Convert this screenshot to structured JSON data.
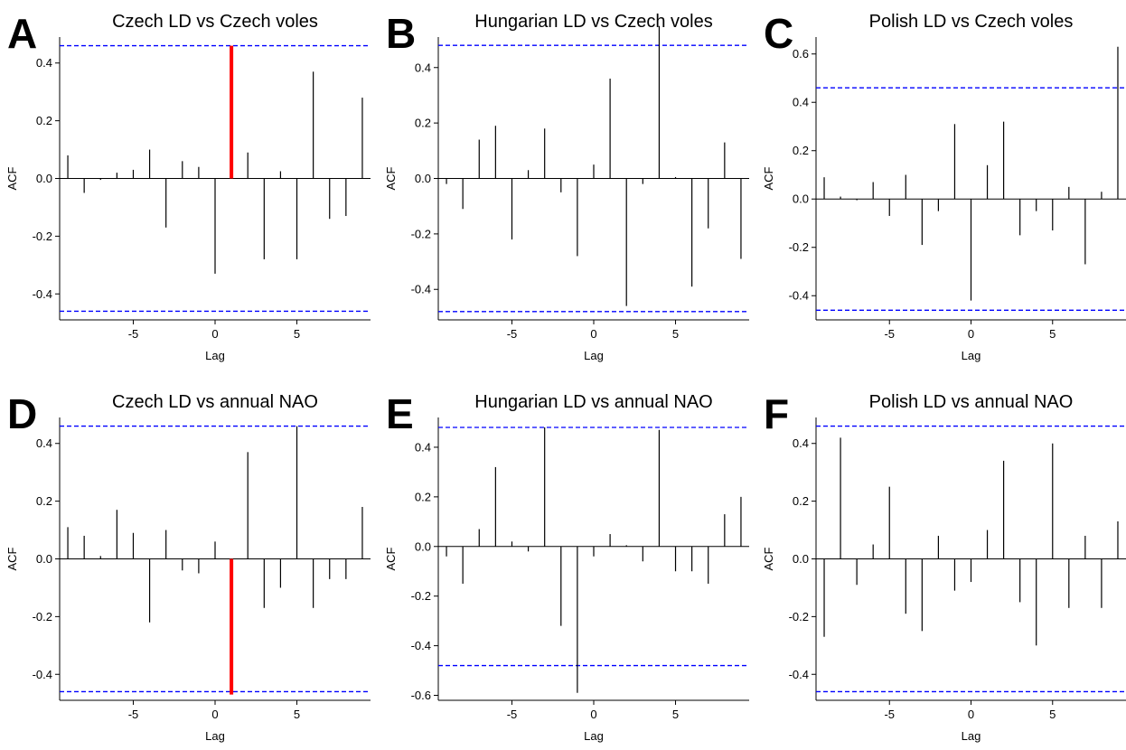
{
  "chart_data": [
    {
      "type": "bar",
      "letter": "A",
      "title": "Czech LD vs Czech voles",
      "xlabel": "Lag",
      "ylabel": "ACF",
      "xlim": [
        -9.5,
        9.5
      ],
      "ylim": [
        -0.49,
        0.49
      ],
      "xticks": [
        -5,
        0,
        5
      ],
      "yticks": [
        -0.4,
        -0.2,
        0.0,
        0.2,
        0.4
      ],
      "ytick_labels": [
        "-0.4",
        "-0.2",
        "0.0",
        "0.2",
        "0.4"
      ],
      "xtick_labels": [
        "-5",
        "0",
        "5"
      ],
      "conf_limit": 0.46,
      "conf_color": "#0000ff",
      "highlight_color": "#ff0000",
      "highlight_lag": 1,
      "lags": [
        -9,
        -8,
        -7,
        -6,
        -5,
        -4,
        -3,
        -2,
        -1,
        0,
        1,
        2,
        3,
        4,
        5,
        6,
        7,
        8,
        9
      ],
      "values": [
        0.08,
        -0.05,
        -0.005,
        0.02,
        0.03,
        0.1,
        -0.17,
        0.06,
        0.04,
        -0.33,
        0.46,
        0.09,
        -0.28,
        0.025,
        -0.28,
        0.37,
        -0.14,
        -0.13,
        0.28
      ]
    },
    {
      "type": "bar",
      "letter": "B",
      "title": "Hungarian LD vs Czech voles",
      "xlabel": "Lag",
      "ylabel": "ACF",
      "xlim": [
        -9.5,
        9.5
      ],
      "ylim": [
        -0.51,
        0.51
      ],
      "xticks": [
        -5,
        0,
        5
      ],
      "yticks": [
        -0.4,
        -0.2,
        0.0,
        0.2,
        0.4
      ],
      "ytick_labels": [
        "-0.4",
        "-0.2",
        "0.0",
        "0.2",
        "0.4"
      ],
      "xtick_labels": [
        "-5",
        "0",
        "5"
      ],
      "conf_limit": 0.48,
      "conf_color": "#0000ff",
      "highlight_color": "#ff0000",
      "highlight_lag": null,
      "lags": [
        -9,
        -8,
        -7,
        -6,
        -5,
        -4,
        -3,
        -2,
        -1,
        0,
        1,
        2,
        3,
        4,
        5,
        6,
        7,
        8,
        9
      ],
      "values": [
        -0.02,
        -0.11,
        0.14,
        0.19,
        -0.22,
        0.03,
        0.18,
        -0.05,
        -0.28,
        0.05,
        0.36,
        -0.46,
        -0.02,
        0.55,
        0.005,
        -0.39,
        -0.18,
        0.13,
        -0.29
      ]
    },
    {
      "type": "bar",
      "letter": "C",
      "title": "Polish LD vs Czech voles",
      "xlabel": "Lag",
      "ylabel": "ACF",
      "xlim": [
        -9.5,
        9.5
      ],
      "ylim": [
        -0.5,
        0.67
      ],
      "xticks": [
        -5,
        0,
        5
      ],
      "yticks": [
        -0.4,
        -0.2,
        0.0,
        0.2,
        0.4,
        0.6
      ],
      "ytick_labels": [
        "-0.4",
        "-0.2",
        "0.0",
        "0.2",
        "0.4",
        "0.6"
      ],
      "xtick_labels": [
        "-5",
        "0",
        "5"
      ],
      "conf_limit": 0.46,
      "conf_color": "#0000ff",
      "highlight_color": "#ff0000",
      "highlight_lag": null,
      "lags": [
        -9,
        -8,
        -7,
        -6,
        -5,
        -4,
        -3,
        -2,
        -1,
        0,
        1,
        2,
        3,
        4,
        5,
        6,
        7,
        8,
        9
      ],
      "values": [
        0.09,
        0.01,
        -0.005,
        0.07,
        -0.07,
        0.1,
        -0.19,
        -0.05,
        0.31,
        -0.42,
        0.14,
        0.32,
        -0.15,
        -0.05,
        -0.13,
        0.05,
        -0.27,
        0.03,
        0.63
      ]
    },
    {
      "type": "bar",
      "letter": "D",
      "title": "Czech LD vs annual NAO",
      "xlabel": "Lag",
      "ylabel": "ACF",
      "xlim": [
        -9.5,
        9.5
      ],
      "ylim": [
        -0.49,
        0.49
      ],
      "xticks": [
        -5,
        0,
        5
      ],
      "yticks": [
        -0.4,
        -0.2,
        0.0,
        0.2,
        0.4
      ],
      "ytick_labels": [
        "-0.4",
        "-0.2",
        "0.0",
        "0.2",
        "0.4"
      ],
      "xtick_labels": [
        "-5",
        "0",
        "5"
      ],
      "conf_limit": 0.46,
      "conf_color": "#0000ff",
      "highlight_color": "#ff0000",
      "highlight_lag": 1,
      "lags": [
        -9,
        -8,
        -7,
        -6,
        -5,
        -4,
        -3,
        -2,
        -1,
        0,
        1,
        2,
        3,
        4,
        5,
        6,
        7,
        8,
        9
      ],
      "values": [
        0.11,
        0.08,
        0.01,
        0.17,
        0.09,
        -0.22,
        0.1,
        -0.04,
        -0.05,
        0.06,
        -0.47,
        0.37,
        -0.17,
        -0.1,
        0.46,
        -0.17,
        -0.07,
        -0.07,
        0.18
      ]
    },
    {
      "type": "bar",
      "letter": "E",
      "title": "Hungarian LD vs annual NAO",
      "xlabel": "Lag",
      "ylabel": "ACF",
      "xlim": [
        -9.5,
        9.5
      ],
      "ylim": [
        -0.62,
        0.52
      ],
      "xticks": [
        -5,
        0,
        5
      ],
      "yticks": [
        -0.6,
        -0.4,
        -0.2,
        0.0,
        0.2,
        0.4
      ],
      "ytick_labels": [
        "-0.6",
        "-0.4",
        "-0.2",
        "0.0",
        "0.2",
        "0.4"
      ],
      "xtick_labels": [
        "-5",
        "0",
        "5"
      ],
      "conf_limit": 0.48,
      "conf_color": "#0000ff",
      "highlight_color": "#ff0000",
      "highlight_lag": null,
      "lags": [
        -9,
        -8,
        -7,
        -6,
        -5,
        -4,
        -3,
        -2,
        -1,
        0,
        1,
        2,
        3,
        4,
        5,
        6,
        7,
        8,
        9
      ],
      "values": [
        -0.04,
        -0.15,
        0.07,
        0.32,
        0.02,
        -0.02,
        0.48,
        -0.32,
        -0.59,
        -0.04,
        0.05,
        0.005,
        -0.06,
        0.47,
        -0.1,
        -0.1,
        -0.15,
        0.13,
        0.2
      ]
    },
    {
      "type": "bar",
      "letter": "F",
      "title": "Polish LD vs annual NAO",
      "xlabel": "Lag",
      "ylabel": "ACF",
      "xlim": [
        -9.5,
        9.5
      ],
      "ylim": [
        -0.49,
        0.49
      ],
      "xticks": [
        -5,
        0,
        5
      ],
      "yticks": [
        -0.4,
        -0.2,
        0.0,
        0.2,
        0.4
      ],
      "ytick_labels": [
        "-0.4",
        "-0.2",
        "0.0",
        "0.2",
        "0.4"
      ],
      "xtick_labels": [
        "-5",
        "0",
        "5"
      ],
      "conf_limit": 0.46,
      "conf_color": "#0000ff",
      "highlight_color": "#ff0000",
      "highlight_lag": null,
      "lags": [
        -9,
        -8,
        -7,
        -6,
        -5,
        -4,
        -3,
        -2,
        -1,
        0,
        1,
        2,
        3,
        4,
        5,
        6,
        7,
        8,
        9
      ],
      "values": [
        -0.27,
        0.42,
        -0.09,
        0.05,
        0.25,
        -0.19,
        -0.25,
        0.08,
        -0.11,
        -0.08,
        0.1,
        0.34,
        -0.15,
        -0.3,
        0.4,
        -0.17,
        0.08,
        -0.17,
        0.13
      ]
    }
  ]
}
